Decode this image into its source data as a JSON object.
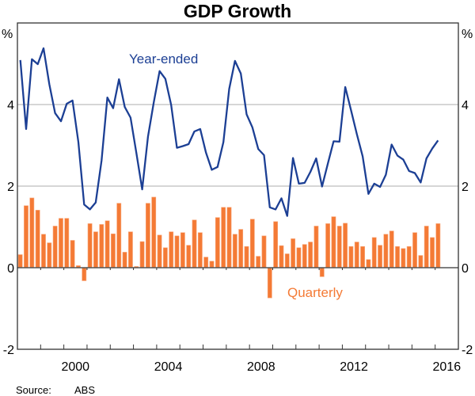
{
  "chart_data": {
    "type": "bar+line",
    "title": "GDP Growth",
    "ylabel_left": "%",
    "ylabel_right": "%",
    "ylim": [
      -2,
      6
    ],
    "yticks": [
      -2,
      0,
      2,
      4
    ],
    "ytick_labels": [
      "-2",
      "0",
      "2",
      "4"
    ],
    "xlim": [
      1998,
      2017
    ],
    "xtick_labels": [
      {
        "year": 2000,
        "label": "2000"
      },
      {
        "year": 2004,
        "label": "2004"
      },
      {
        "year": 2008,
        "label": "2008"
      },
      {
        "year": 2012,
        "label": "2012"
      },
      {
        "year": 2016,
        "label": "2016"
      }
    ],
    "x_start": "1998 Q1",
    "x_end": "2016 Q1",
    "grid": true,
    "series": [
      {
        "name": "Year-ended",
        "type": "line",
        "color": "#1c3f94",
        "values": [
          5.09,
          3.4,
          5.11,
          4.99,
          5.38,
          4.5,
          3.79,
          3.59,
          4.02,
          4.1,
          3.08,
          1.55,
          1.43,
          1.6,
          2.63,
          4.17,
          3.91,
          4.62,
          3.94,
          3.68,
          2.82,
          1.92,
          3.21,
          4.05,
          4.82,
          4.63,
          3.99,
          2.94,
          2.98,
          3.03,
          3.34,
          3.4,
          2.82,
          2.4,
          2.47,
          3.08,
          4.38,
          5.07,
          4.76,
          3.76,
          3.44,
          2.91,
          2.76,
          1.48,
          1.43,
          1.7,
          1.27,
          2.69,
          2.06,
          2.08,
          2.35,
          2.68,
          1.99,
          2.55,
          3.1,
          3.09,
          4.43,
          3.86,
          3.28,
          2.73,
          1.81,
          2.06,
          1.98,
          2.28,
          3.02,
          2.75,
          2.65,
          2.37,
          2.32,
          2.09,
          2.68,
          2.92,
          3.12
        ]
      },
      {
        "name": "Quarterly",
        "type": "bar",
        "color": "#f47a35",
        "values": [
          0.32,
          1.52,
          1.71,
          1.41,
          0.82,
          0.61,
          1.02,
          1.21,
          1.21,
          0.67,
          0.05,
          -0.32,
          1.08,
          0.88,
          1.06,
          1.15,
          0.83,
          1.58,
          0.38,
          0.88,
          0.03,
          0.64,
          1.58,
          1.73,
          0.8,
          0.49,
          0.88,
          0.78,
          0.86,
          0.55,
          1.17,
          0.86,
          0.26,
          0.16,
          1.23,
          1.48,
          1.48,
          0.82,
          0.94,
          0.52,
          1.19,
          0.28,
          0.78,
          -0.74,
          1.13,
          0.54,
          0.34,
          0.71,
          0.49,
          0.57,
          0.63,
          1.02,
          -0.22,
          1.08,
          1.25,
          1.02,
          1.09,
          0.52,
          0.63,
          0.52,
          0.2,
          0.74,
          0.55,
          0.82,
          0.9,
          0.52,
          0.47,
          0.52,
          0.86,
          0.3,
          1.02,
          0.74,
          1.08
        ]
      }
    ],
    "annotations": [
      "Year-ended",
      "Quarterly"
    ],
    "source_label": "Source:",
    "source": "ABS"
  }
}
